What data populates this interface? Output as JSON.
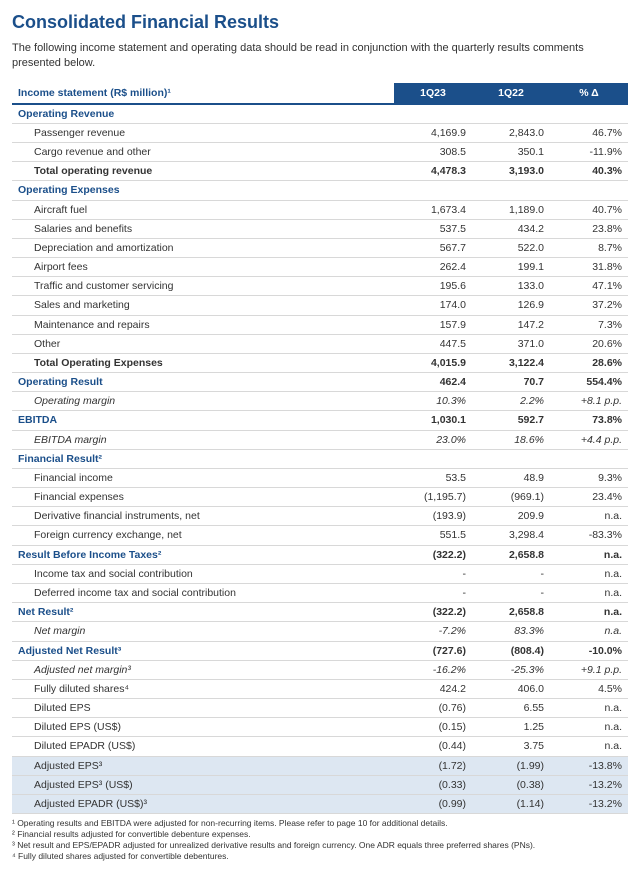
{
  "title": "Consolidated Financial Results",
  "intro": "The following income statement and operating data should be read in conjunction with the quarterly results comments presented below.",
  "table": {
    "header_label": "Income statement (R$ million)¹",
    "col1": "1Q23",
    "col2": "1Q22",
    "col3": "% Δ",
    "rows": [
      {
        "cls": "section",
        "label": "Operating Revenue",
        "c1": "",
        "c2": "",
        "c3": ""
      },
      {
        "cls": "indent1",
        "label": "Passenger revenue",
        "c1": "4,169.9",
        "c2": "2,843.0",
        "c3": "46.7%"
      },
      {
        "cls": "indent1",
        "label": "Cargo revenue and other",
        "c1": "308.5",
        "c2": "350.1",
        "c3": "-11.9%"
      },
      {
        "cls": "bold",
        "label": "Total operating revenue",
        "c1": "4,478.3",
        "c2": "3,193.0",
        "c3": "40.3%"
      },
      {
        "cls": "section",
        "label": "Operating Expenses",
        "c1": "",
        "c2": "",
        "c3": ""
      },
      {
        "cls": "indent1",
        "label": "Aircraft fuel",
        "c1": "1,673.4",
        "c2": "1,189.0",
        "c3": "40.7%"
      },
      {
        "cls": "indent1",
        "label": "Salaries and benefits",
        "c1": "537.5",
        "c2": "434.2",
        "c3": "23.8%"
      },
      {
        "cls": "indent1",
        "label": "Depreciation and amortization",
        "c1": "567.7",
        "c2": "522.0",
        "c3": "8.7%"
      },
      {
        "cls": "indent1",
        "label": "Airport fees",
        "c1": "262.4",
        "c2": "199.1",
        "c3": "31.8%"
      },
      {
        "cls": "indent1",
        "label": "Traffic and customer servicing",
        "c1": "195.6",
        "c2": "133.0",
        "c3": "47.1%"
      },
      {
        "cls": "indent1",
        "label": "Sales and marketing",
        "c1": "174.0",
        "c2": "126.9",
        "c3": "37.2%"
      },
      {
        "cls": "indent1",
        "label": "Maintenance and repairs",
        "c1": "157.9",
        "c2": "147.2",
        "c3": "7.3%"
      },
      {
        "cls": "indent1",
        "label": "Other",
        "c1": "447.5",
        "c2": "371.0",
        "c3": "20.6%"
      },
      {
        "cls": "bold",
        "label": "Total Operating Expenses",
        "c1": "4,015.9",
        "c2": "3,122.4",
        "c3": "28.6%"
      },
      {
        "cls": "flushbold",
        "label": "Operating Result",
        "c1": "462.4",
        "c2": "70.7",
        "c3": "554.4%"
      },
      {
        "cls": "indent2 italic",
        "label": "Operating margin",
        "c1": "10.3%",
        "c2": "2.2%",
        "c3": "+8.1 p.p."
      },
      {
        "cls": "flushbold",
        "label": "EBITDA",
        "c1": "1,030.1",
        "c2": "592.7",
        "c3": "73.8%"
      },
      {
        "cls": "indent2 italic",
        "label": "EBITDA margin",
        "c1": "23.0%",
        "c2": "18.6%",
        "c3": "+4.4 p.p."
      },
      {
        "cls": "section",
        "label": "Financial Result²",
        "c1": "",
        "c2": "",
        "c3": ""
      },
      {
        "cls": "indent1",
        "label": "Financial income",
        "c1": "53.5",
        "c2": "48.9",
        "c3": "9.3%"
      },
      {
        "cls": "indent1",
        "label": "Financial expenses",
        "c1": "(1,195.7)",
        "c2": "(969.1)",
        "c3": "23.4%"
      },
      {
        "cls": "indent1",
        "label": "Derivative financial instruments, net",
        "c1": "(193.9)",
        "c2": "209.9",
        "c3": "n.a."
      },
      {
        "cls": "indent1",
        "label": "Foreign currency exchange, net",
        "c1": "551.5",
        "c2": "3,298.4",
        "c3": "-83.3%"
      },
      {
        "cls": "flushbold",
        "label": "Result Before Income Taxes²",
        "c1": "(322.2)",
        "c2": "2,658.8",
        "c3": "n.a."
      },
      {
        "cls": "indent1",
        "label": "Income tax and social contribution",
        "c1": "-",
        "c2": "-",
        "c3": "n.a."
      },
      {
        "cls": "indent1",
        "label": "Deferred income tax and social contribution",
        "c1": "-",
        "c2": "-",
        "c3": "n.a."
      },
      {
        "cls": "flushbold",
        "label": "Net Result²",
        "c1": "(322.2)",
        "c2": "2,658.8",
        "c3": "n.a."
      },
      {
        "cls": "indent2 italic",
        "label": "Net margin",
        "c1": "-7.2%",
        "c2": "83.3%",
        "c3": "n.a."
      },
      {
        "cls": "flushbold",
        "label": "Adjusted Net Result³",
        "c1": "(727.6)",
        "c2": "(808.4)",
        "c3": "-10.0%"
      },
      {
        "cls": "indent2 italic",
        "label": "Adjusted net margin³",
        "c1": "-16.2%",
        "c2": "-25.3%",
        "c3": "+9.1 p.p."
      },
      {
        "cls": "indent1",
        "label": "Fully diluted shares⁴",
        "c1": "424.2",
        "c2": "406.0",
        "c3": "4.5%"
      },
      {
        "cls": "indent1",
        "label": "Diluted EPS",
        "c1": "(0.76)",
        "c2": "6.55",
        "c3": "n.a."
      },
      {
        "cls": "indent1",
        "label": "Diluted EPS (US$)",
        "c1": "(0.15)",
        "c2": "1.25",
        "c3": "n.a."
      },
      {
        "cls": "indent1",
        "label": "Diluted EPADR (US$)",
        "c1": "(0.44)",
        "c2": "3.75",
        "c3": "n.a."
      },
      {
        "cls": "indent1 shade",
        "label": "Adjusted EPS³",
        "c1": "(1.72)",
        "c2": "(1.99)",
        "c3": "-13.8%"
      },
      {
        "cls": "indent1 shade",
        "label": "Adjusted EPS³ (US$)",
        "c1": "(0.33)",
        "c2": "(0.38)",
        "c3": "-13.2%"
      },
      {
        "cls": "indent1 shade",
        "label": "Adjusted EPADR (US$)³",
        "c1": "(0.99)",
        "c2": "(1.14)",
        "c3": "-13.2%"
      }
    ]
  },
  "footnotes": [
    "¹ Operating results and EBITDA were adjusted for non-recurring items. Please refer to page 10 for additional details.",
    "² Financial results adjusted for convertible debenture expenses.",
    "³ Net result and EPS/EPADR adjusted for unrealized derivative results and foreign currency. One ADR equals three preferred shares (PNs).",
    "⁴ Fully diluted shares adjusted for convertible debentures."
  ]
}
